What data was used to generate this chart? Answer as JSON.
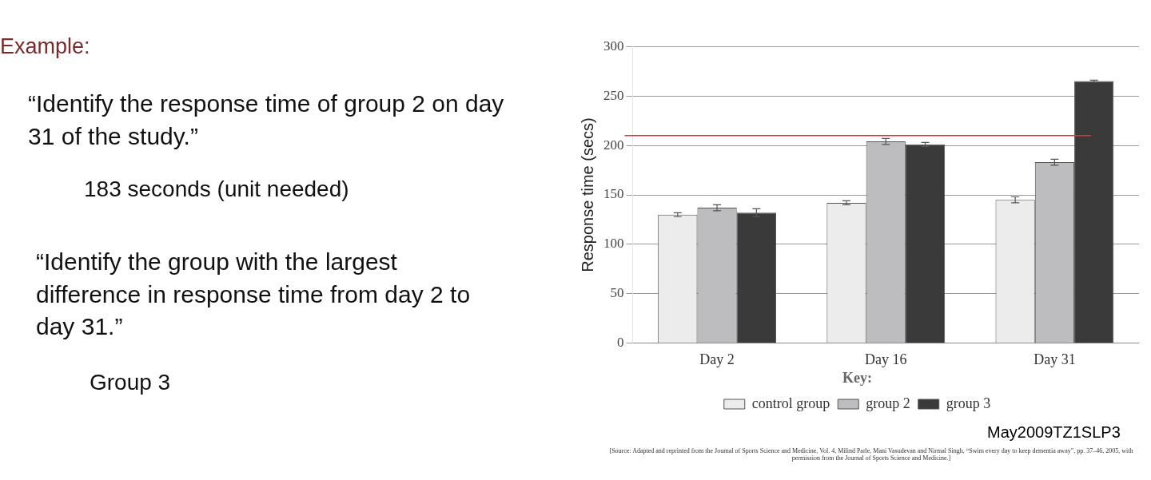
{
  "chart_data": {
    "type": "bar",
    "ylabel": "Response time (secs)",
    "legend_title": "Key:",
    "categories": [
      "Day 2",
      "Day 16",
      "Day 31"
    ],
    "series": [
      {
        "name": "control group",
        "color": "#ececec",
        "values": [
          130,
          142,
          145
        ],
        "errors": [
          2,
          2,
          3
        ]
      },
      {
        "name": "group 2",
        "color": "#bdbdc0",
        "values": [
          137,
          204,
          183
        ],
        "errors": [
          3,
          3,
          3
        ]
      },
      {
        "name": "group 3",
        "color": "#3a3a3a",
        "values": [
          132,
          201,
          265
        ],
        "errors": [
          4,
          2,
          1
        ]
      }
    ],
    "ylim": [
      0,
      300
    ],
    "yticks": [
      0,
      50,
      100,
      150,
      200,
      250,
      300
    ],
    "grid": "y",
    "legend": "bottom",
    "ref_lines": [
      {
        "axis": "y",
        "value": 210,
        "color": "#e83030"
      }
    ],
    "annotations": [
      "Example:",
      "“Identify the response time of group 2 on day 31 of the study.”",
      "183 seconds (unit needed)",
      "“Identify the group with the largest difference in response time from day 2 to day 31.”",
      "Group 3",
      "May2009TZ1SLP3",
      "[Source: Adapted and reprinted from the Journal of Sports Science and Medicine, Vol. 4, Milind Parle, Mani Vasudevan and Nirmal Singh, “Swim every day to keep dementia away”, pp. 37–46, 2005, with permission from the Journal of Sports Science and Medicine.]"
    ]
  }
}
